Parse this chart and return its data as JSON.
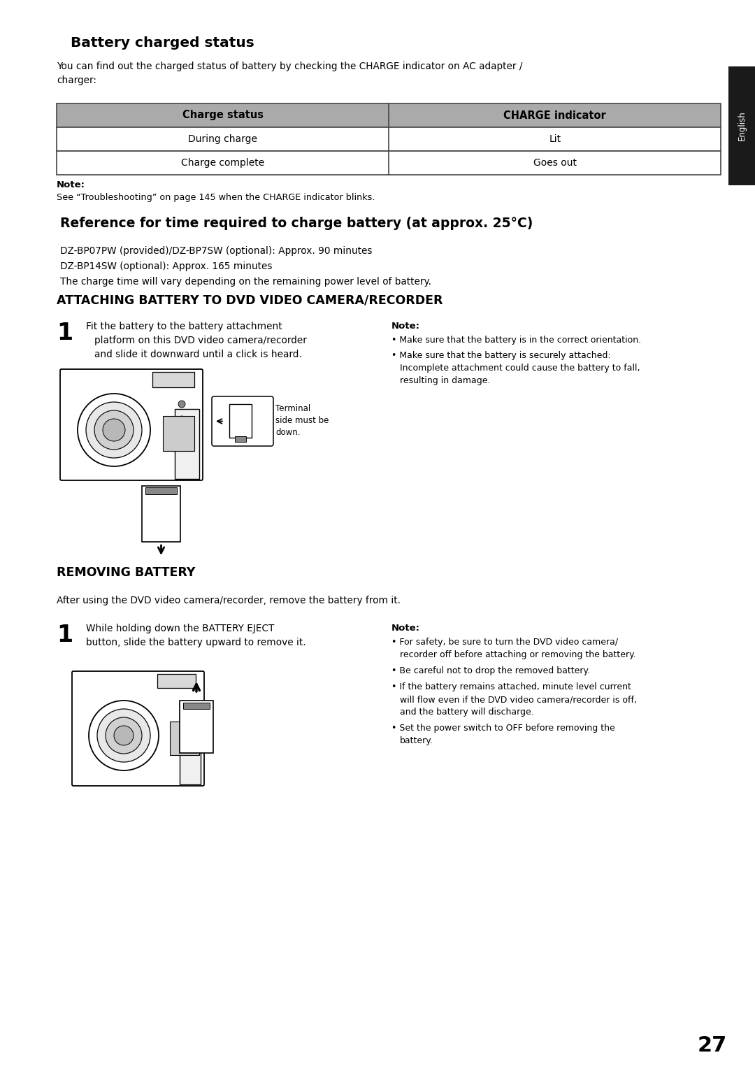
{
  "page_bg": "#ffffff",
  "page_number": "27",
  "sidebar_color": "#1a1a1a",
  "sidebar_text": "English",
  "section1_title": "Battery charged status",
  "section1_intro": "You can find out the charged status of battery by checking the CHARGE indicator on AC adapter /\ncharger:",
  "table_header_bg": "#aaaaaa",
  "table_header1": "Charge status",
  "table_header2": "CHARGE indicator",
  "table_row1": [
    "During charge",
    "Lit"
  ],
  "table_row2": [
    "Charge complete",
    "Goes out"
  ],
  "note1_label": "Note:",
  "note1_text": "See “Troubleshooting” on page 145 when the CHARGE indicator blinks.",
  "section2_title": "Reference for time required to charge battery (at approx. 25°C)",
  "section2_lines": [
    "DZ-BP07PW (provided)/DZ-BP7SW (optional): Approx. 90 minutes",
    "DZ-BP14SW (optional): Approx. 165 minutes",
    "The charge time will vary depending on the remaining power level of battery."
  ],
  "section3_title": "ATTACHING BATTERY TO DVD VIDEO CAMERA/RECORDER",
  "step1_number": "1",
  "step1_text_line1": "Fit the battery to the battery attachment",
  "step1_text_line2": "platform on this DVD video camera/recorder",
  "step1_text_line3": "and slide it downward until a click is heard.",
  "step1_note_label": "Note:",
  "step1_note_bullets": [
    "Make sure that the battery is in the correct orientation.",
    "Make sure that the battery is securely attached:\nIncomplete attachment could cause the battery to fall,\nresulting in damage."
  ],
  "terminal_label": "Terminal\nside must be\ndown.",
  "section4_title": "REMOVING BATTERY",
  "section4_intro": "After using the DVD video camera/recorder, remove the battery from it.",
  "step2_number": "1",
  "step2_text_line1": "While holding down the BATTERY EJECT",
  "step2_text_line2": "button, slide the battery upward to remove it.",
  "step2_note_label": "Note:",
  "step2_note_bullets": [
    "For safety, be sure to turn the DVD video camera/\nrecorder off before attaching or removing the battery.",
    "Be careful not to drop the removed battery.",
    "If the battery remains attached, minute level current\nwill flow even if the DVD video camera/recorder is off,\nand the battery will discharge.",
    "Set the power switch to OFF before removing the\nbattery."
  ],
  "ml": 0.075,
  "mr": 0.955
}
